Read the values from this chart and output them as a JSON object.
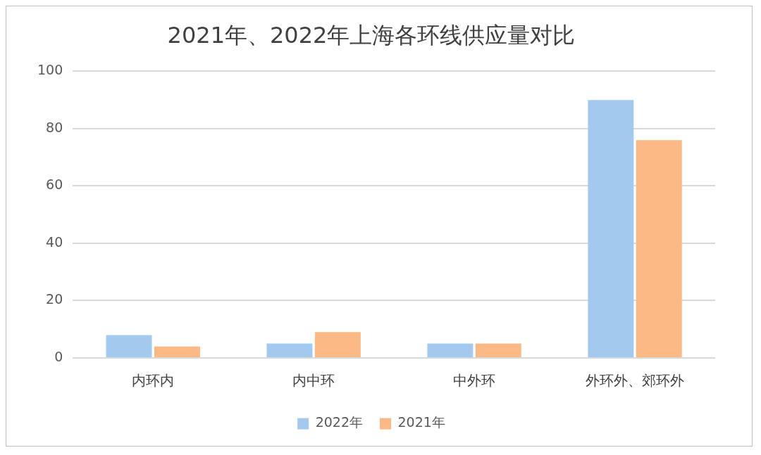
{
  "chart_data": {
    "type": "bar",
    "title": "2021年、2022年上海各环线供应量对比",
    "categories": [
      "内环内",
      "内中环",
      "中外环",
      "外环外、郊环外"
    ],
    "series": [
      {
        "name": "2022年",
        "color": "#a4c9ef",
        "values": [
          8,
          5,
          5,
          90
        ]
      },
      {
        "name": "2021年",
        "color": "#fbb985",
        "values": [
          4,
          9,
          5,
          76
        ]
      }
    ],
    "ylim": [
      0,
      100
    ],
    "yticks": [
      0,
      20,
      40,
      60,
      80,
      100
    ],
    "grid": "y",
    "legend": "bottom"
  }
}
